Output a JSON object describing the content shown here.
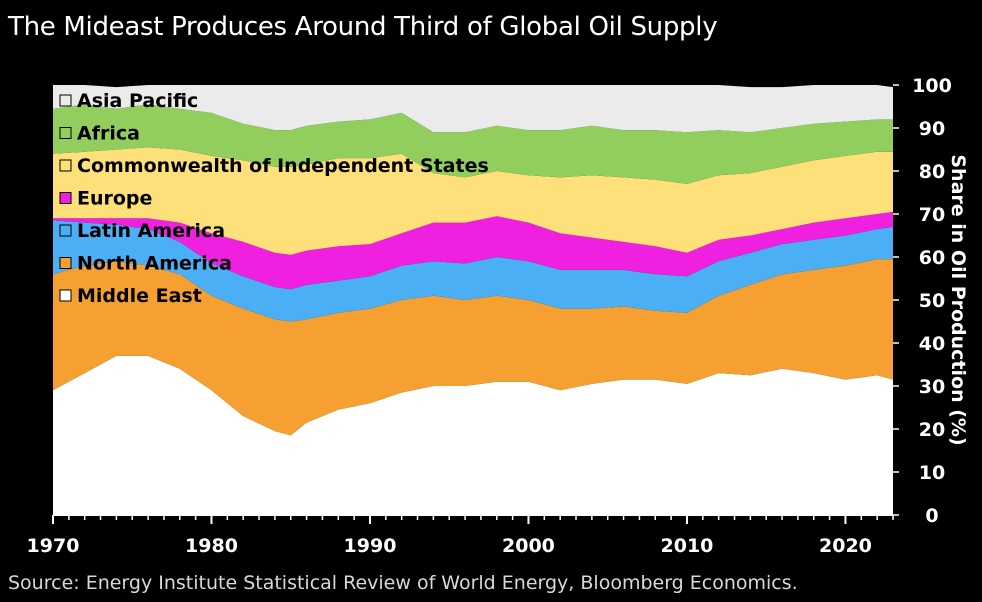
{
  "title": "The Mideast Produces Around Third of Global Oil Supply",
  "source": "Source: Energy Institute Statistical Review of World Energy, Bloomberg Economics.",
  "chart_data": {
    "type": "area",
    "stacked": true,
    "ylabel": "Share in Oil Production (%)",
    "ylim": [
      0,
      100
    ],
    "xlim": [
      1970,
      2023
    ],
    "y_ticks": [
      "0",
      "10",
      "20",
      "30",
      "40",
      "50",
      "60",
      "70",
      "80",
      "90",
      "100"
    ],
    "x_ticks": [
      "1970",
      "1980",
      "1990",
      "2000",
      "2010",
      "2020"
    ],
    "legend_position": "top-left",
    "grid": false,
    "x": [
      1970,
      1972,
      1974,
      1976,
      1978,
      1980,
      1982,
      1984,
      1985,
      1986,
      1988,
      1990,
      1992,
      1994,
      1996,
      1998,
      2000,
      2002,
      2004,
      2006,
      2008,
      2010,
      2012,
      2014,
      2016,
      2018,
      2020,
      2022,
      2023
    ],
    "series": [
      {
        "name": "Middle East",
        "color": "#ffffff",
        "values": [
          29,
          33,
          37,
          37,
          34,
          29,
          23,
          19.5,
          18.5,
          21.5,
          24.5,
          26,
          28.5,
          30,
          30,
          31,
          31,
          29,
          30.5,
          31.5,
          31.5,
          30.5,
          33,
          32.5,
          34,
          33,
          31.5,
          32.5,
          31.5
        ]
      },
      {
        "name": "North America",
        "color": "#f5a030",
        "values": [
          27,
          25,
          22,
          21,
          22,
          22,
          25,
          26,
          26.5,
          24,
          22.5,
          22,
          21.5,
          21,
          20,
          20,
          19,
          19,
          17.5,
          17,
          16,
          16.5,
          18,
          21,
          22,
          24,
          26.5,
          27,
          28
        ]
      },
      {
        "name": "Latin America",
        "color": "#4aaff5",
        "values": [
          12.5,
          10,
          8.5,
          8.5,
          7.5,
          7.5,
          7.5,
          7.5,
          7.5,
          8,
          7.5,
          7.5,
          8,
          8,
          8.5,
          9,
          9,
          9,
          9,
          8.5,
          8.5,
          8.5,
          8,
          7.5,
          7,
          7,
          7,
          7,
          7.5
        ]
      },
      {
        "name": "Europe",
        "color": "#f020e0",
        "values": [
          0.5,
          1,
          1.5,
          2.5,
          4.5,
          7,
          8,
          8,
          8,
          8,
          8,
          7.5,
          7.5,
          9,
          9.5,
          9.5,
          9,
          8.5,
          7.5,
          6.5,
          6.5,
          5.5,
          5,
          4,
          3.5,
          4,
          4,
          3.5,
          3.5
        ]
      },
      {
        "name": "Commonwealth of Independent States",
        "color": "#fde07a",
        "values": [
          15,
          15.5,
          16,
          16.5,
          17,
          18,
          19,
          20,
          20.5,
          20,
          20.5,
          20,
          18.5,
          11.5,
          10.5,
          10.5,
          11,
          13,
          14.5,
          15,
          15.5,
          16,
          15,
          14.5,
          14.5,
          14.5,
          14.5,
          14.5,
          14
        ]
      },
      {
        "name": "Africa",
        "color": "#92ce5e",
        "values": [
          10.5,
          11,
          9.5,
          10,
          9.5,
          10,
          8.5,
          8.5,
          8.5,
          9,
          8.5,
          9,
          9.5,
          9.5,
          10.5,
          10.5,
          10.5,
          11,
          11.5,
          11,
          11.5,
          12,
          10.5,
          9.5,
          9,
          8.5,
          8,
          7.5,
          7.5
        ]
      },
      {
        "name": "Asia Pacific",
        "color": "#ebebeb",
        "values": [
          5.5,
          4.5,
          5,
          5,
          6,
          6.5,
          9,
          10.5,
          10.5,
          10,
          8.5,
          8,
          8.5,
          11,
          11,
          9.5,
          10.5,
          10.5,
          9.5,
          10.5,
          10.5,
          11,
          10.5,
          10.5,
          9.5,
          9,
          8.5,
          8,
          7.5
        ]
      }
    ]
  }
}
